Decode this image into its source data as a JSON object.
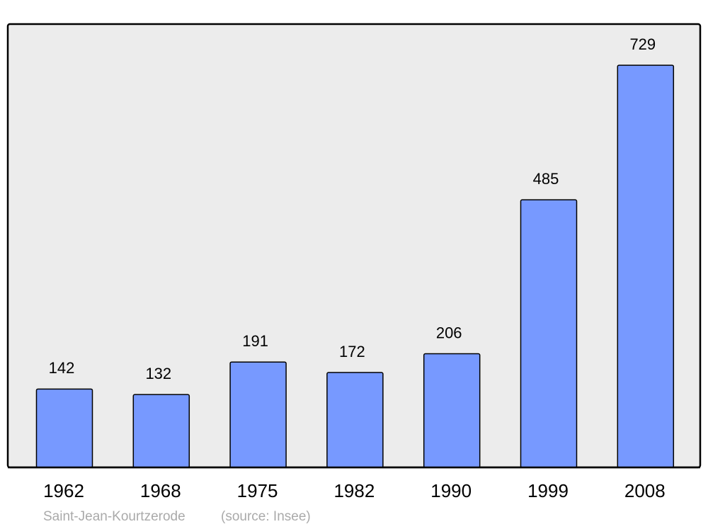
{
  "chart_data": {
    "type": "bar",
    "categories": [
      "1962",
      "1968",
      "1975",
      "1982",
      "1990",
      "1999",
      "2008"
    ],
    "values": [
      142,
      132,
      191,
      172,
      206,
      485,
      729
    ],
    "color": "#7799ff",
    "place": "Saint-Jean-Kourtzerode",
    "source": "(source: Insee)"
  }
}
